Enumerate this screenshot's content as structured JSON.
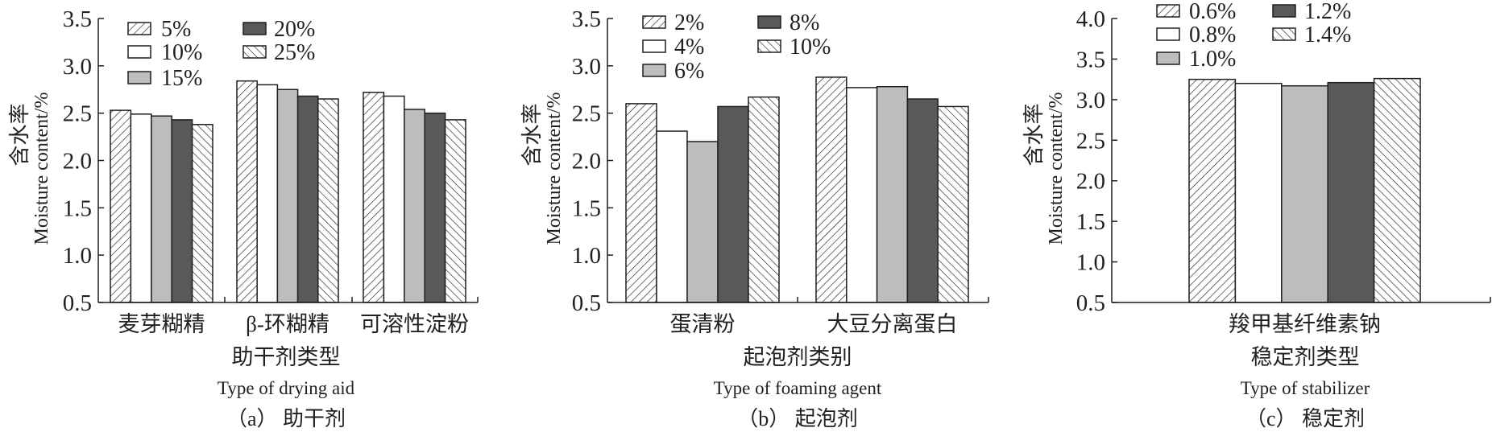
{
  "chart_data": [
    {
      "type": "bar",
      "ylabel_cn": "含水率",
      "ylabel": "Moisture content/%",
      "xlabel_cn": "助干剂类型",
      "xlabel": "Type of drying aid",
      "caption": "（a） 助干剂",
      "ylim": [
        0.5,
        3.5
      ],
      "yticks": [
        "0.5",
        "1.0",
        "1.5",
        "2.0",
        "2.5",
        "3.0",
        "3.5"
      ],
      "categories": [
        "麦芽糊精",
        "β-环糊精",
        "可溶性淀粉"
      ],
      "series": [
        {
          "name": "5%",
          "style": "hatch-fwd",
          "values": [
            2.53,
            2.84,
            2.72
          ]
        },
        {
          "name": "10%",
          "style": "white",
          "values": [
            2.49,
            2.8,
            2.68
          ]
        },
        {
          "name": "15%",
          "style": "light",
          "values": [
            2.47,
            2.75,
            2.54
          ]
        },
        {
          "name": "20%",
          "style": "dark",
          "values": [
            2.43,
            2.68,
            2.5
          ]
        },
        {
          "name": "25%",
          "style": "hatch-back",
          "values": [
            2.38,
            2.65,
            2.43
          ]
        }
      ]
    },
    {
      "type": "bar",
      "ylabel_cn": "含水率",
      "ylabel": "Moisture content/%",
      "xlabel_cn": "起泡剂类别",
      "xlabel": "Type of foaming agent",
      "caption": "（b） 起泡剂",
      "ylim": [
        0.5,
        3.5
      ],
      "yticks": [
        "0.5",
        "1.0",
        "1.5",
        "2.0",
        "2.5",
        "3.0",
        "3.5"
      ],
      "categories": [
        "蛋清粉",
        "大豆分离蛋白"
      ],
      "series": [
        {
          "name": "2%",
          "style": "hatch-fwd",
          "values": [
            2.6,
            2.88
          ]
        },
        {
          "name": "4%",
          "style": "white",
          "values": [
            2.31,
            2.77
          ]
        },
        {
          "name": "6%",
          "style": "light",
          "values": [
            2.2,
            2.78
          ]
        },
        {
          "name": "8%",
          "style": "dark",
          "values": [
            2.57,
            2.65
          ]
        },
        {
          "name": "10%",
          "style": "hatch-back",
          "values": [
            2.67,
            2.57
          ]
        }
      ]
    },
    {
      "type": "bar",
      "ylabel_cn": "含水率",
      "ylabel": "Moisture content/%",
      "xlabel_cn": "稳定剂类型",
      "xlabel": "Type of stabilizer",
      "caption": "（c） 稳定剂",
      "ylim": [
        0.5,
        4.0
      ],
      "yticks": [
        "0.5",
        "1.0",
        "1.5",
        "2.0",
        "2.5",
        "3.0",
        "3.5",
        "4.0"
      ],
      "categories": [
        "羧甲基纤维素钠"
      ],
      "series": [
        {
          "name": "0.6%",
          "style": "hatch-fwd",
          "values": [
            3.25
          ]
        },
        {
          "name": "0.8%",
          "style": "white",
          "values": [
            3.2
          ]
        },
        {
          "name": "1.0%",
          "style": "light",
          "values": [
            3.17
          ]
        },
        {
          "name": "1.2%",
          "style": "dark",
          "values": [
            3.21
          ]
        },
        {
          "name": "1.4%",
          "style": "hatch-back",
          "values": [
            3.26
          ]
        }
      ]
    }
  ],
  "colors": {
    "light": "#bcbdbf",
    "dark": "#58595b",
    "line": "#231f20"
  }
}
